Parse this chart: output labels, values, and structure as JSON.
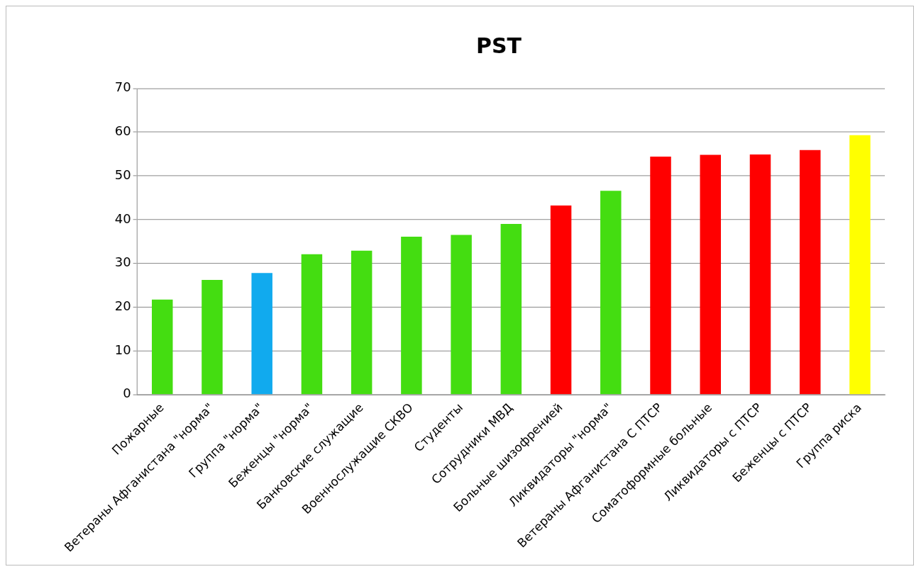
{
  "chart_data": {
    "type": "bar",
    "title": "PST",
    "categories": [
      "Пожарные",
      "Ветераны Афганистана \"норма\"",
      "Группа \"норма\"",
      "Беженцы \"норма\"",
      "Банковские служащие",
      "Военнослужащие СКВО",
      "Студенты",
      "Сотрудники МВД",
      "Больные шизофренией",
      "Ликвидаторы \"норма\"",
      "Ветераны Афганистана С ПТСР",
      "Соматоформные больные",
      "Ликвидаторы с ПТСР",
      "Беженцы с ПТСР",
      "Группа риска"
    ],
    "values": [
      21.7,
      26.2,
      27.8,
      32.1,
      32.9,
      36.1,
      36.5,
      39.0,
      43.2,
      46.6,
      54.4,
      54.8,
      54.9,
      55.9,
      59.3
    ],
    "colors": [
      "#44dd11",
      "#44dd11",
      "#11aaee",
      "#44dd11",
      "#44dd11",
      "#44dd11",
      "#44dd11",
      "#44dd11",
      "#ff0000",
      "#44dd11",
      "#ff0000",
      "#ff0000",
      "#ff0000",
      "#ff0000",
      "#ffff00"
    ],
    "ylim": [
      0,
      70
    ],
    "yticks": [
      0,
      10,
      20,
      30,
      40,
      50,
      60,
      70
    ],
    "grid": "y",
    "legend": false
  }
}
